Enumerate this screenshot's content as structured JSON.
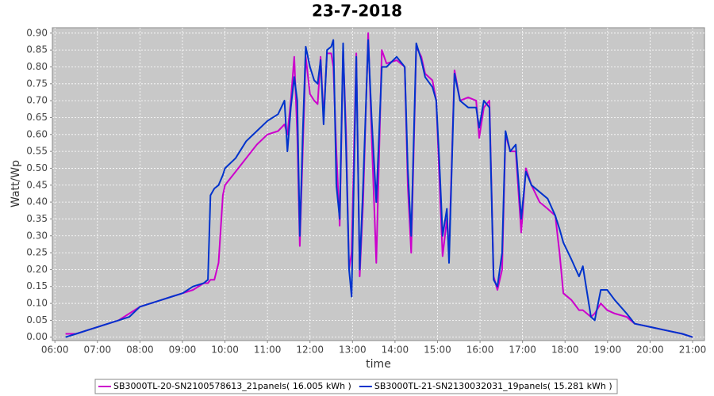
{
  "chart_data": {
    "type": "line",
    "title": "23-7-2018",
    "x_label": "time",
    "y_label": "Watt/Wp",
    "x": [
      6.25,
      6.5,
      6.75,
      7,
      7.25,
      7.5,
      7.75,
      8,
      8.25,
      8.5,
      8.75,
      9,
      9.25,
      9.5,
      9.6,
      9.66,
      9.75,
      9.85,
      9.95,
      10,
      10.25,
      10.5,
      10.75,
      11,
      11.25,
      11.4,
      11.47,
      11.55,
      11.63,
      11.7,
      11.76,
      11.83,
      11.9,
      12.0,
      12.1,
      12.18,
      12.25,
      12.32,
      12.4,
      12.5,
      12.55,
      12.62,
      12.7,
      12.78,
      12.85,
      12.92,
      12.98,
      13.09,
      13.17,
      13.25,
      13.37,
      13.45,
      13.56,
      13.69,
      13.8,
      14.04,
      14.23,
      14.3,
      14.38,
      14.5,
      14.62,
      14.71,
      14.88,
      14.97,
      15.05,
      15.12,
      15.22,
      15.27,
      15.4,
      15.53,
      15.72,
      15.91,
      15.98,
      16.09,
      16.22,
      16.32,
      16.41,
      16.52,
      16.6,
      16.71,
      16.84,
      16.97,
      17.08,
      17.21,
      17.4,
      17.59,
      17.77,
      17.87,
      17.96,
      18.15,
      18.33,
      18.42,
      18.61,
      18.7,
      18.84,
      18.99,
      19.17,
      19.45,
      19.64,
      20.01,
      20.38,
      20.76,
      21.0
    ],
    "series": [
      {
        "name": "SB3000TL-20-SN2100578613_21panels( 16.005 kWh )",
        "color": "#cc00cc",
        "values": [
          0.01,
          0.01,
          0.02,
          0.03,
          0.04,
          0.05,
          0.07,
          0.09,
          0.1,
          0.11,
          0.12,
          0.13,
          0.14,
          0.16,
          0.16,
          0.17,
          0.17,
          0.22,
          0.42,
          0.45,
          0.49,
          0.53,
          0.57,
          0.6,
          0.61,
          0.63,
          0.6,
          0.7,
          0.83,
          0.6,
          0.27,
          0.55,
          0.83,
          0.72,
          0.7,
          0.69,
          0.83,
          0.65,
          0.84,
          0.84,
          0.8,
          0.55,
          0.33,
          0.85,
          0.6,
          0.2,
          0.25,
          0.84,
          0.18,
          0.4,
          0.9,
          0.6,
          0.22,
          0.85,
          0.81,
          0.82,
          0.8,
          0.45,
          0.25,
          0.86,
          0.83,
          0.78,
          0.76,
          0.7,
          0.45,
          0.24,
          0.35,
          0.25,
          0.79,
          0.7,
          0.71,
          0.7,
          0.59,
          0.68,
          0.7,
          0.18,
          0.14,
          0.2,
          0.6,
          0.55,
          0.55,
          0.31,
          0.5,
          0.45,
          0.4,
          0.38,
          0.36,
          0.25,
          0.13,
          0.11,
          0.08,
          0.08,
          0.06,
          0.07,
          0.1,
          0.08,
          0.07,
          0.06,
          0.04,
          0.03,
          0.02,
          0.01,
          0.0
        ]
      },
      {
        "name": "SB3000TL-21-SN2130032031_19panels( 15.281 kWh )",
        "color": "#0033cc",
        "values": [
          0.0,
          0.01,
          0.02,
          0.03,
          0.04,
          0.05,
          0.06,
          0.09,
          0.1,
          0.11,
          0.12,
          0.13,
          0.15,
          0.16,
          0.17,
          0.42,
          0.44,
          0.45,
          0.48,
          0.5,
          0.53,
          0.58,
          0.61,
          0.64,
          0.66,
          0.7,
          0.55,
          0.68,
          0.77,
          0.7,
          0.3,
          0.6,
          0.86,
          0.8,
          0.76,
          0.75,
          0.82,
          0.63,
          0.85,
          0.86,
          0.88,
          0.45,
          0.35,
          0.87,
          0.55,
          0.2,
          0.12,
          0.83,
          0.2,
          0.45,
          0.88,
          0.65,
          0.4,
          0.8,
          0.8,
          0.83,
          0.8,
          0.5,
          0.3,
          0.87,
          0.82,
          0.77,
          0.74,
          0.7,
          0.5,
          0.3,
          0.38,
          0.22,
          0.78,
          0.7,
          0.68,
          0.68,
          0.62,
          0.7,
          0.68,
          0.17,
          0.15,
          0.25,
          0.61,
          0.55,
          0.57,
          0.35,
          0.49,
          0.45,
          0.43,
          0.41,
          0.36,
          0.32,
          0.28,
          0.23,
          0.18,
          0.21,
          0.06,
          0.05,
          0.14,
          0.14,
          0.11,
          0.07,
          0.04,
          0.03,
          0.02,
          0.01,
          0.0
        ]
      }
    ],
    "xlim": [
      5.94,
      21.28
    ],
    "xticks": [
      {
        "value": 6,
        "label": "06:00"
      },
      {
        "value": 7,
        "label": "07:00"
      },
      {
        "value": 8,
        "label": "08:00"
      },
      {
        "value": 9,
        "label": "09:00"
      },
      {
        "value": 10,
        "label": "10:00"
      },
      {
        "value": 11,
        "label": "11:00"
      },
      {
        "value": 12,
        "label": "12:00"
      },
      {
        "value": 13,
        "label": "13:00"
      },
      {
        "value": 14,
        "label": "14:00"
      },
      {
        "value": 15,
        "label": "15:00"
      },
      {
        "value": 16,
        "label": "16:00"
      },
      {
        "value": 17,
        "label": "17:00"
      },
      {
        "value": 18,
        "label": "18:00"
      },
      {
        "value": 19,
        "label": "19:00"
      },
      {
        "value": 20,
        "label": "20:00"
      },
      {
        "value": 21,
        "label": "21:00"
      }
    ],
    "ylim": [
      -0.01,
      0.916
    ],
    "yticks": [
      {
        "value": 0,
        "label": "0.00"
      },
      {
        "value": 0.05,
        "label": "0.05"
      },
      {
        "value": 0.1,
        "label": "0.10"
      },
      {
        "value": 0.15,
        "label": "0.15"
      },
      {
        "value": 0.2,
        "label": "0.20"
      },
      {
        "value": 0.25,
        "label": "0.25"
      },
      {
        "value": 0.3,
        "label": "0.30"
      },
      {
        "value": 0.35,
        "label": "0.35"
      },
      {
        "value": 0.4,
        "label": "0.40"
      },
      {
        "value": 0.45,
        "label": "0.45"
      },
      {
        "value": 0.5,
        "label": "0.50"
      },
      {
        "value": 0.55,
        "label": "0.55"
      },
      {
        "value": 0.6,
        "label": "0.60"
      },
      {
        "value": 0.65,
        "label": "0.65"
      },
      {
        "value": 0.7,
        "label": "0.70"
      },
      {
        "value": 0.75,
        "label": "0.75"
      },
      {
        "value": 0.8,
        "label": "0.80"
      },
      {
        "value": 0.85,
        "label": "0.85"
      },
      {
        "value": 0.9,
        "label": "0.90"
      }
    ],
    "grid": true,
    "legend": "bottom"
  }
}
